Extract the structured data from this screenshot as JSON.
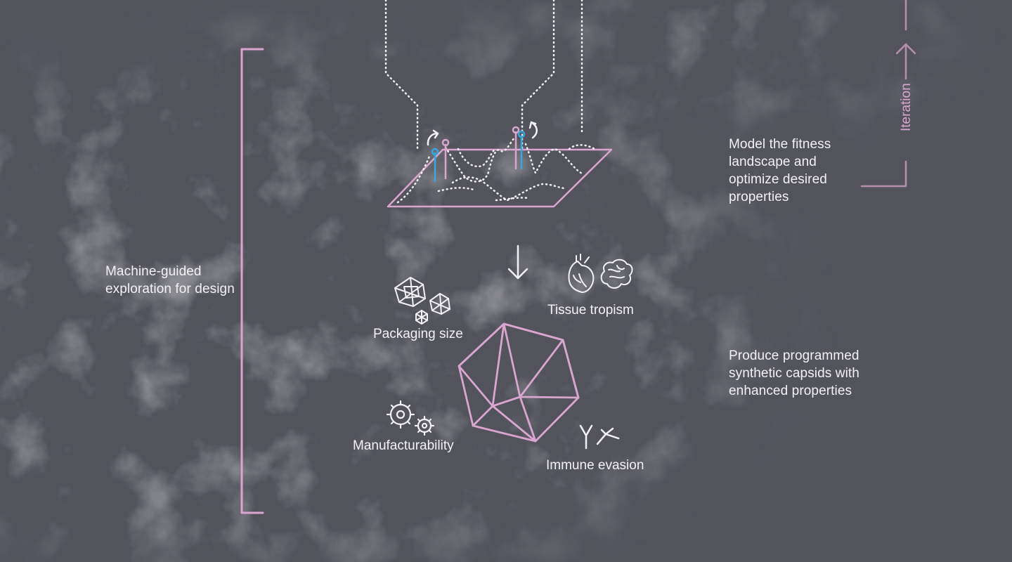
{
  "colors": {
    "background": "#53535c",
    "texture_dark": "#45454c",
    "texture_mid": "#4b4b53",
    "accent_pink": "#d9a6cf",
    "iteration_pink": "#b68fae",
    "probe_blue": "#3aa7dc",
    "line_white": "#f2f2f4"
  },
  "labels": {
    "left_caption": "Machine-guided exploration for design",
    "top_right_caption": "Model the fitness landscape and optimize desired properties",
    "bottom_right_caption": "Produce programmed synthetic capsids with enhanced properties",
    "iteration": "Iteration"
  },
  "properties": {
    "packaging": "Packaging size",
    "tissue": "Tissue tropism",
    "manufacturability": "Manufacturability",
    "immune": "Immune evasion"
  },
  "icons": {
    "packaging": "icosahedron-cluster-icon",
    "tissue": "heart-brain-icon",
    "manufacturability": "gears-icon",
    "immune": "antibody-icon",
    "center": "capsid-icosahedron-icon"
  }
}
